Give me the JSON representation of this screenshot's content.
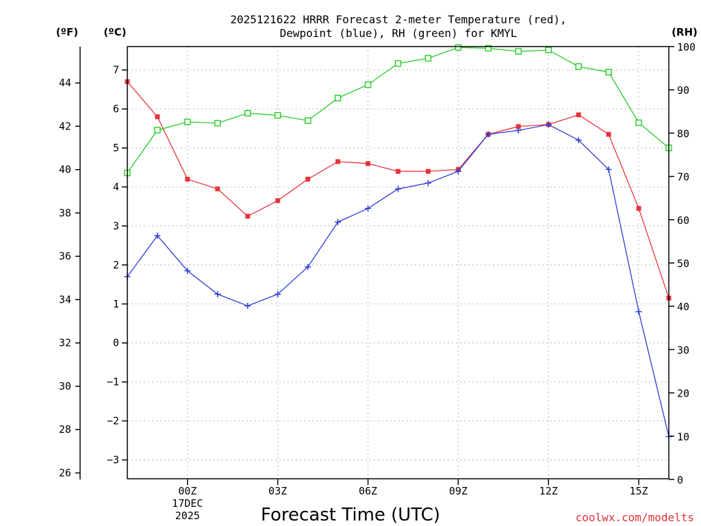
{
  "chart_data": {
    "type": "line",
    "title_lines": [
      "2025121622 HRRR Forecast 2-meter Temperature (red),",
      "Dewpoint (blue), RH (green) for KMYL"
    ],
    "units": {
      "f": "(ºF)",
      "c": "(ºC)",
      "rh": "(RH)"
    },
    "xlabel": "Forecast Time (UTC)",
    "watermark": "coolwx.com/modelts",
    "x_hours": [
      -2,
      -1,
      0,
      1,
      2,
      3,
      4,
      5,
      6,
      7,
      8,
      9,
      10,
      11,
      12,
      13,
      14,
      15,
      16
    ],
    "x_ticks": [
      {
        "hour": 0,
        "lines": [
          "00Z",
          "17DEC",
          "2025"
        ]
      },
      {
        "hour": 3,
        "lines": [
          "03Z"
        ]
      },
      {
        "hour": 6,
        "lines": [
          "06Z"
        ]
      },
      {
        "hour": 9,
        "lines": [
          "09Z"
        ]
      },
      {
        "hour": 12,
        "lines": [
          "12Z"
        ]
      },
      {
        "hour": 15,
        "lines": [
          "15Z"
        ]
      }
    ],
    "c_range": [
      -3.5,
      7.6
    ],
    "c_ticks": [
      -3,
      -2,
      -1,
      0,
      1,
      2,
      3,
      4,
      5,
      6,
      7
    ],
    "f_ticks": [
      26,
      28,
      30,
      32,
      34,
      36,
      38,
      40,
      42,
      44
    ],
    "rh_range": [
      0,
      100
    ],
    "rh_ticks": [
      0,
      10,
      20,
      30,
      40,
      50,
      60,
      70,
      80,
      90,
      100
    ],
    "series": [
      {
        "name": "Temperature",
        "axis": "c",
        "color": "#e8333c",
        "marker": "square-filled",
        "values": [
          6.7,
          5.8,
          4.2,
          3.95,
          3.25,
          3.65,
          4.2,
          4.65,
          4.6,
          4.4,
          4.4,
          4.45,
          5.35,
          5.55,
          5.6,
          5.85,
          5.35,
          3.45,
          1.15
        ]
      },
      {
        "name": "Dewpoint",
        "axis": "c",
        "color": "#2b3bd8",
        "marker": "plus",
        "values": [
          1.7,
          2.75,
          1.85,
          1.25,
          0.95,
          1.25,
          1.95,
          3.1,
          3.45,
          3.95,
          4.1,
          4.4,
          5.35,
          5.45,
          5.6,
          5.2,
          4.45,
          0.8,
          -2.4
        ]
      },
      {
        "name": "RH",
        "axis": "rh",
        "color": "#22cc22",
        "marker": "square-open",
        "values": [
          70.8,
          80.7,
          82.6,
          82.3,
          84.6,
          84.1,
          82.9,
          88.1,
          91.2,
          96.1,
          97.3,
          99.8,
          99.6,
          98.9,
          99.2,
          95.4,
          94.1,
          82.4,
          76.6
        ]
      }
    ]
  }
}
